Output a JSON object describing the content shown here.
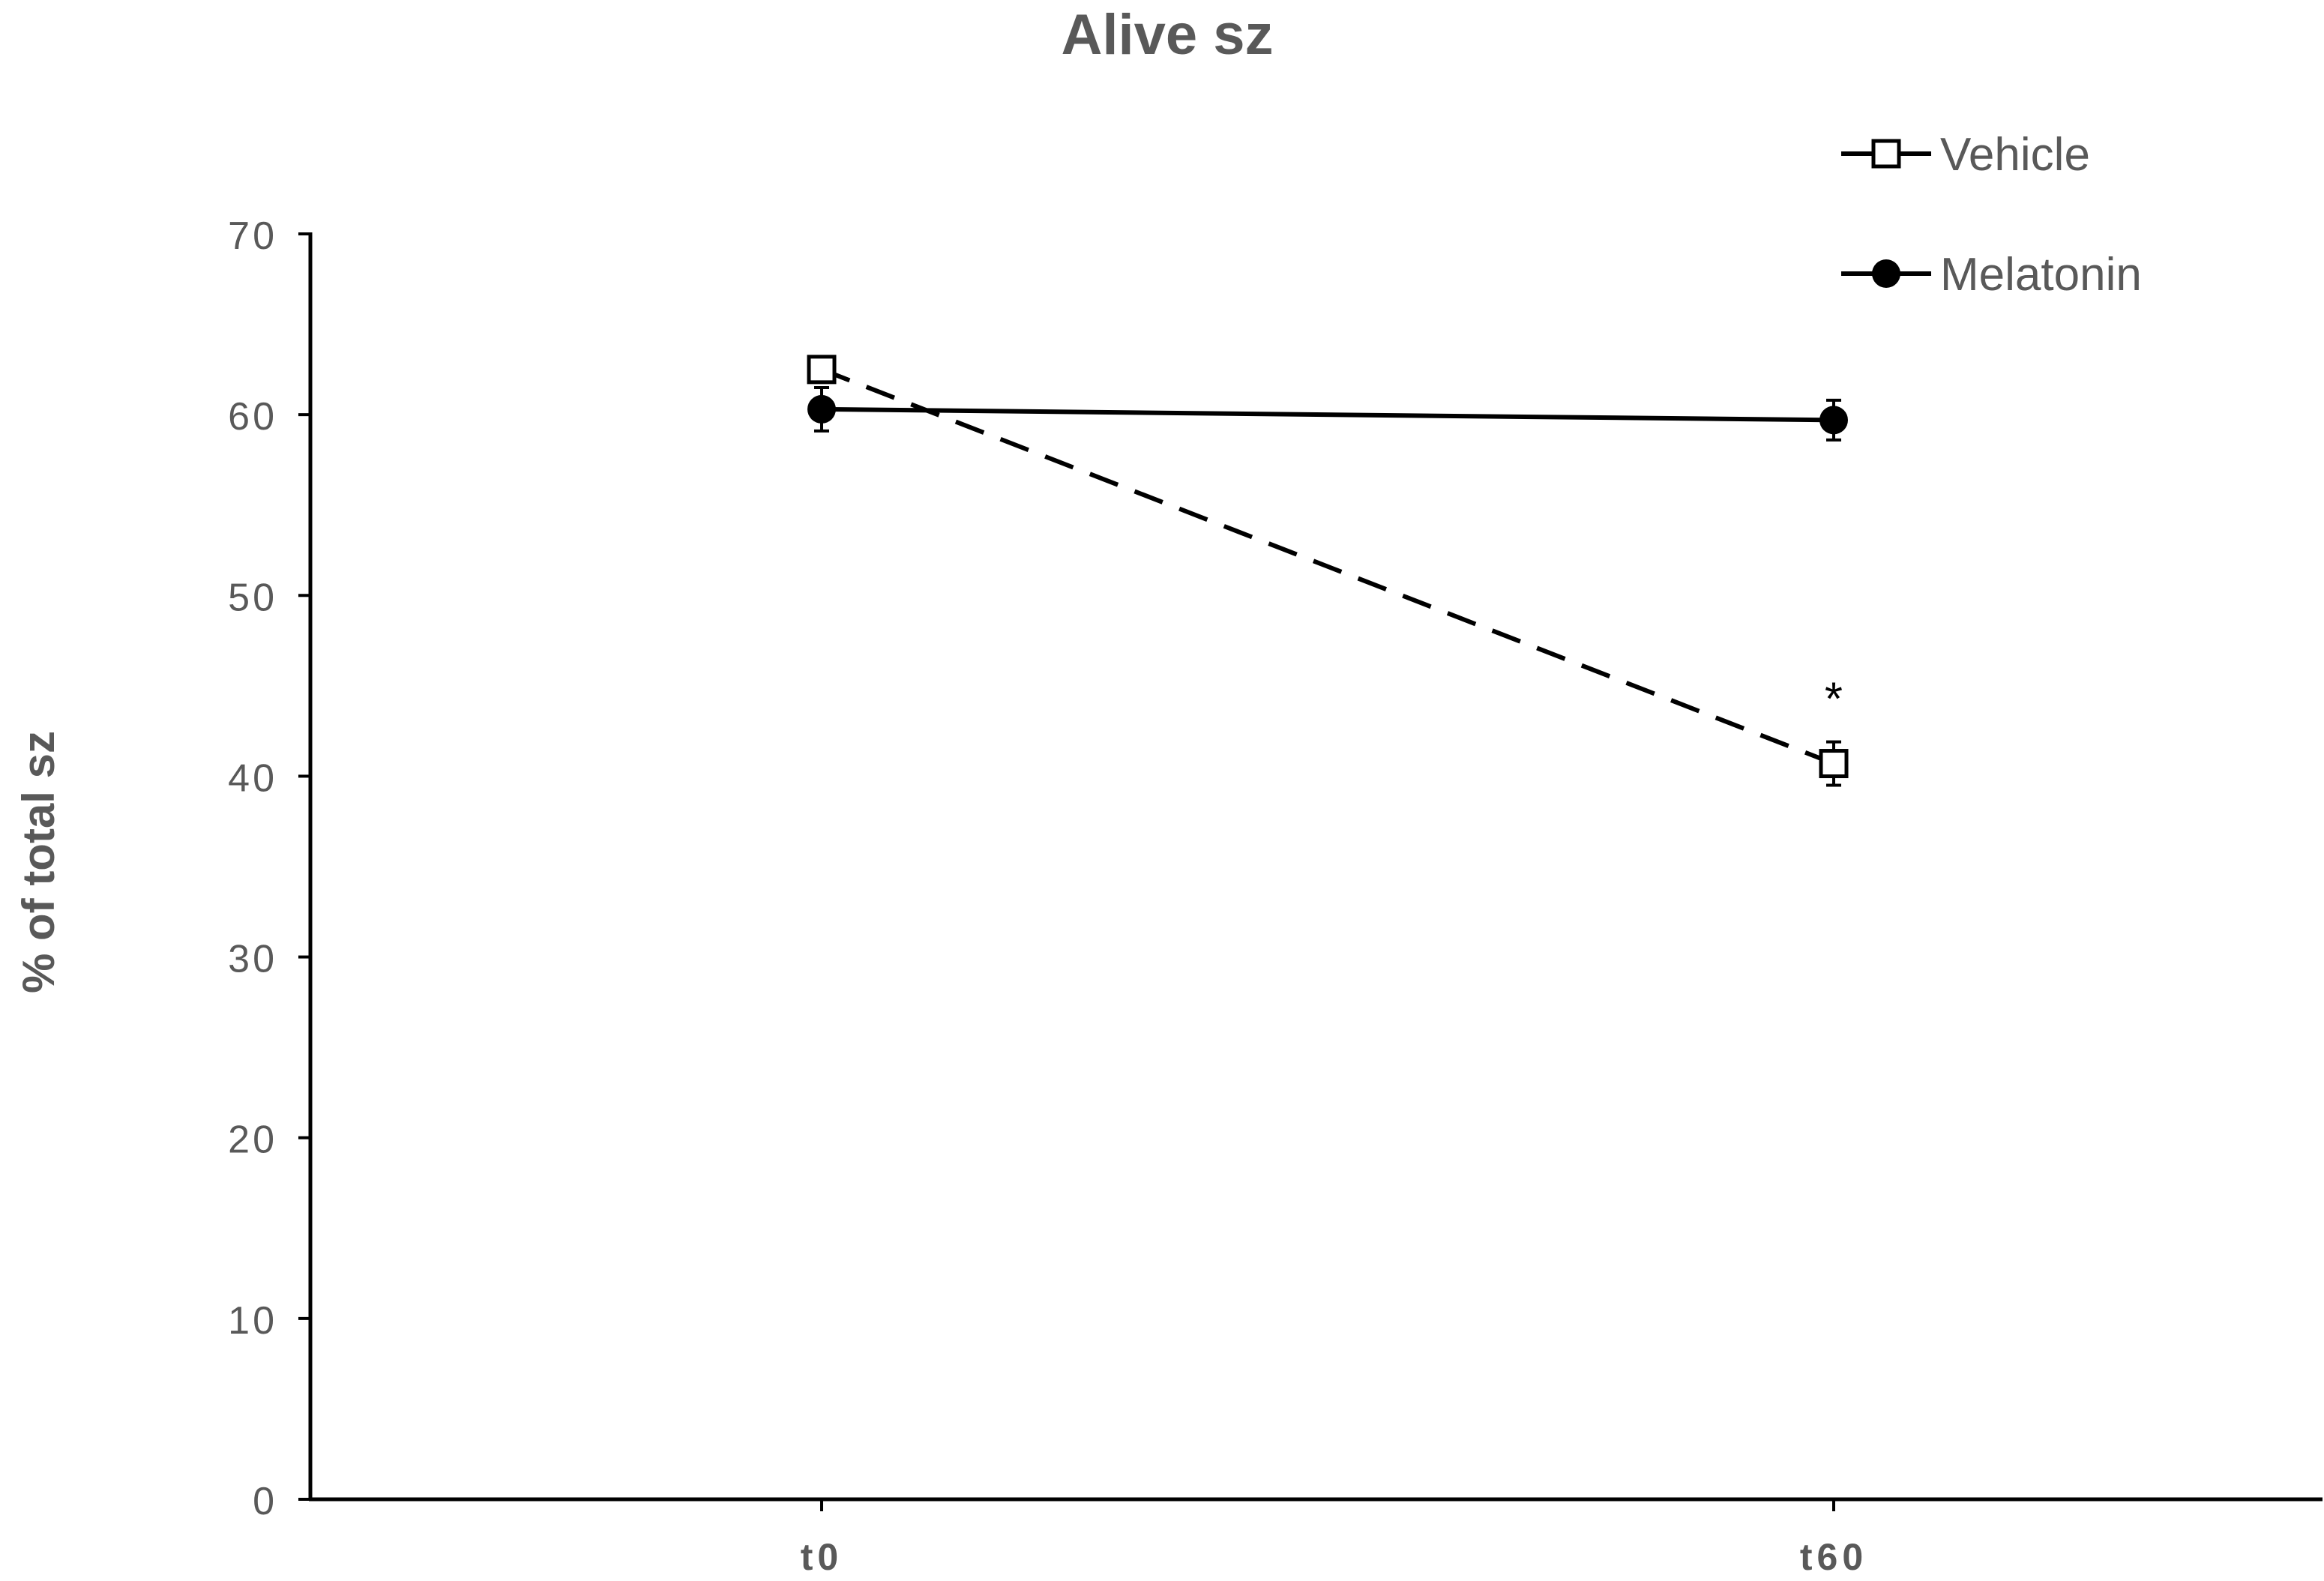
{
  "chart_data": {
    "type": "line",
    "title": "Alive sz",
    "xlabel": "",
    "ylabel": "% of total sz",
    "categories": [
      "t0",
      "t60"
    ],
    "ylim": [
      0,
      70
    ],
    "yticks": [
      0,
      10,
      20,
      30,
      40,
      50,
      60,
      70
    ],
    "grid": false,
    "legend_position": "top-right",
    "series": [
      {
        "name": "Vehicle",
        "values": [
          62.5,
          40.7
        ],
        "errors": [
          0.4,
          1.2
        ],
        "line_style": "dashed",
        "marker": "open-square",
        "color": "#000000"
      },
      {
        "name": "Melatonin",
        "values": [
          60.3,
          59.7
        ],
        "errors": [
          1.2,
          1.1
        ],
        "line_style": "solid",
        "marker": "filled-circle",
        "color": "#000000"
      }
    ],
    "annotations": [
      {
        "text": "*",
        "category": "t60",
        "value": 44.8
      }
    ],
    "colors": {
      "axis": "#000000",
      "text": "#595959",
      "title": "#595959"
    }
  }
}
